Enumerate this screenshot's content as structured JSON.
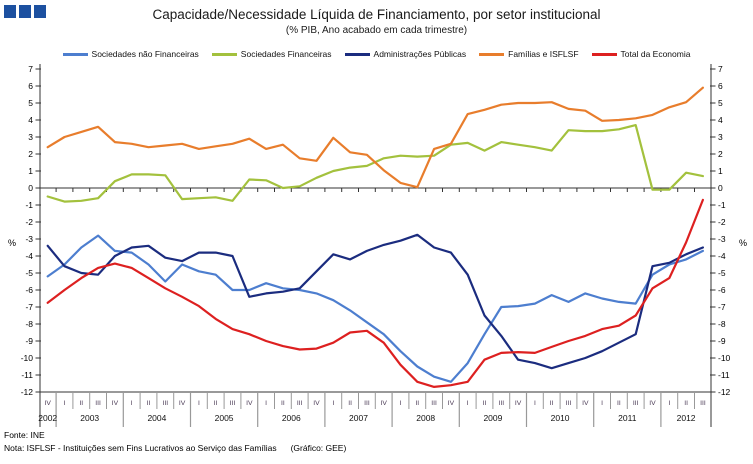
{
  "title": "Capacidade/Necessidade Líquida de Financiamento, por setor institucional",
  "subtitle": "(% PIB, Ano acabado em cada trimestre)",
  "footer": {
    "source": "Fonte: INE",
    "note": "Nota: ISFLSF - Instituições sem Fins Lucrativos ao Serviço das Famílias",
    "credit": "(Gráfico: GEE)"
  },
  "y_axis_unit_label": "%",
  "colors": {
    "logo": "#1c50a0",
    "axis": "#333333",
    "separator": "#999999",
    "quarter_label": "#4a3a55",
    "year_label": "#111111"
  },
  "chart_data": {
    "type": "line",
    "title": "Capacidade/Necessidade Líquida de Financiamento, por setor institucional",
    "subtitle": "(% PIB, Ano acabado em cada trimestre)",
    "ylabel": "%",
    "ylim": [
      -12,
      7
    ],
    "yticks": [
      7,
      6,
      5,
      4,
      3,
      2,
      1,
      0,
      -1,
      -2,
      -3,
      -4,
      -5,
      -6,
      -7,
      -8,
      -9,
      -10,
      -11,
      -12
    ],
    "grid": "zero-line-only",
    "legend_position": "top",
    "x_years": [
      {
        "year": "2002",
        "quarters": [
          "IV"
        ]
      },
      {
        "year": "2003",
        "quarters": [
          "I",
          "II",
          "III",
          "IV"
        ]
      },
      {
        "year": "2004",
        "quarters": [
          "I",
          "II",
          "III",
          "IV"
        ]
      },
      {
        "year": "2005",
        "quarters": [
          "I",
          "II",
          "III",
          "IV"
        ]
      },
      {
        "year": "2006",
        "quarters": [
          "I",
          "II",
          "III",
          "IV"
        ]
      },
      {
        "year": "2007",
        "quarters": [
          "I",
          "II",
          "III",
          "IV"
        ]
      },
      {
        "year": "2008",
        "quarters": [
          "I",
          "II",
          "III",
          "IV"
        ]
      },
      {
        "year": "2009",
        "quarters": [
          "I",
          "II",
          "III",
          "IV"
        ]
      },
      {
        "year": "2010",
        "quarters": [
          "I",
          "II",
          "III",
          "IV"
        ]
      },
      {
        "year": "2011",
        "quarters": [
          "I",
          "II",
          "III",
          "IV"
        ]
      },
      {
        "year": "2012",
        "quarters": [
          "I",
          "II",
          "III"
        ]
      }
    ],
    "series": [
      {
        "name": "Sociedades não Financeiras",
        "color": "#4d7ecf",
        "values": [
          -5.2,
          -4.5,
          -3.5,
          -2.8,
          -3.7,
          -3.8,
          -4.5,
          -5.5,
          -4.5,
          -4.9,
          -5.1,
          -6.0,
          -6.0,
          -5.6,
          -5.9,
          -6.0,
          -6.2,
          -6.6,
          -7.2,
          -7.9,
          -8.6,
          -9.6,
          -10.5,
          -11.1,
          -11.4,
          -10.3,
          -8.6,
          -7.0,
          -6.95,
          -6.8,
          -6.3,
          -6.7,
          -6.2,
          -6.5,
          -6.7,
          -6.8,
          -5.1,
          -4.5,
          -4.2,
          -3.7
        ]
      },
      {
        "name": "Sociedades Financeiras",
        "color": "#a3c13d",
        "values": [
          -0.5,
          -0.8,
          -0.75,
          -0.6,
          0.4,
          0.8,
          0.8,
          0.75,
          -0.65,
          -0.6,
          -0.55,
          -0.75,
          0.5,
          0.45,
          0.0,
          0.1,
          0.6,
          1.0,
          1.2,
          1.3,
          1.75,
          1.9,
          1.85,
          1.9,
          2.55,
          2.65,
          2.2,
          2.7,
          2.55,
          2.4,
          2.2,
          3.4,
          3.35,
          3.35,
          3.45,
          3.7,
          -0.1,
          -0.1,
          0.9,
          0.7
        ]
      },
      {
        "name": "Administrações Públicas",
        "color": "#1b2c7f",
        "values": [
          -3.4,
          -4.6,
          -5.0,
          -5.1,
          -4.0,
          -3.5,
          -3.4,
          -4.1,
          -4.3,
          -3.8,
          -3.8,
          -4.0,
          -6.4,
          -6.2,
          -6.1,
          -5.9,
          -4.9,
          -3.9,
          -4.2,
          -3.7,
          -3.35,
          -3.1,
          -2.75,
          -3.5,
          -3.8,
          -5.1,
          -7.5,
          -8.7,
          -10.1,
          -10.3,
          -10.6,
          -10.3,
          -10.0,
          -9.6,
          -9.1,
          -8.6,
          -4.6,
          -4.4,
          -3.9,
          -3.5
        ]
      },
      {
        "name": "Famílias e ISFLSF",
        "color": "#e87d2c",
        "values": [
          2.4,
          3.0,
          3.3,
          3.6,
          2.7,
          2.6,
          2.4,
          2.5,
          2.6,
          2.3,
          2.45,
          2.6,
          2.9,
          2.3,
          2.55,
          1.75,
          1.6,
          2.95,
          2.1,
          1.95,
          1.05,
          0.3,
          0.05,
          2.3,
          2.6,
          4.35,
          4.6,
          4.9,
          5.0,
          5.0,
          5.05,
          4.65,
          4.55,
          3.95,
          4.0,
          4.1,
          4.3,
          4.75,
          5.05,
          5.9
        ]
      },
      {
        "name": "Total da Economia",
        "color": "#dd2020",
        "values": [
          -6.75,
          -6.0,
          -5.3,
          -4.7,
          -4.45,
          -4.7,
          -5.3,
          -5.9,
          -6.4,
          -6.95,
          -7.7,
          -8.3,
          -8.6,
          -9.0,
          -9.3,
          -9.5,
          -9.45,
          -9.1,
          -8.5,
          -8.4,
          -9.1,
          -10.4,
          -11.4,
          -11.7,
          -11.6,
          -11.4,
          -10.1,
          -9.7,
          -9.65,
          -9.7,
          -9.35,
          -9.0,
          -8.7,
          -8.3,
          -8.1,
          -7.5,
          -5.9,
          -5.3,
          -3.2,
          -0.7
        ]
      }
    ]
  }
}
